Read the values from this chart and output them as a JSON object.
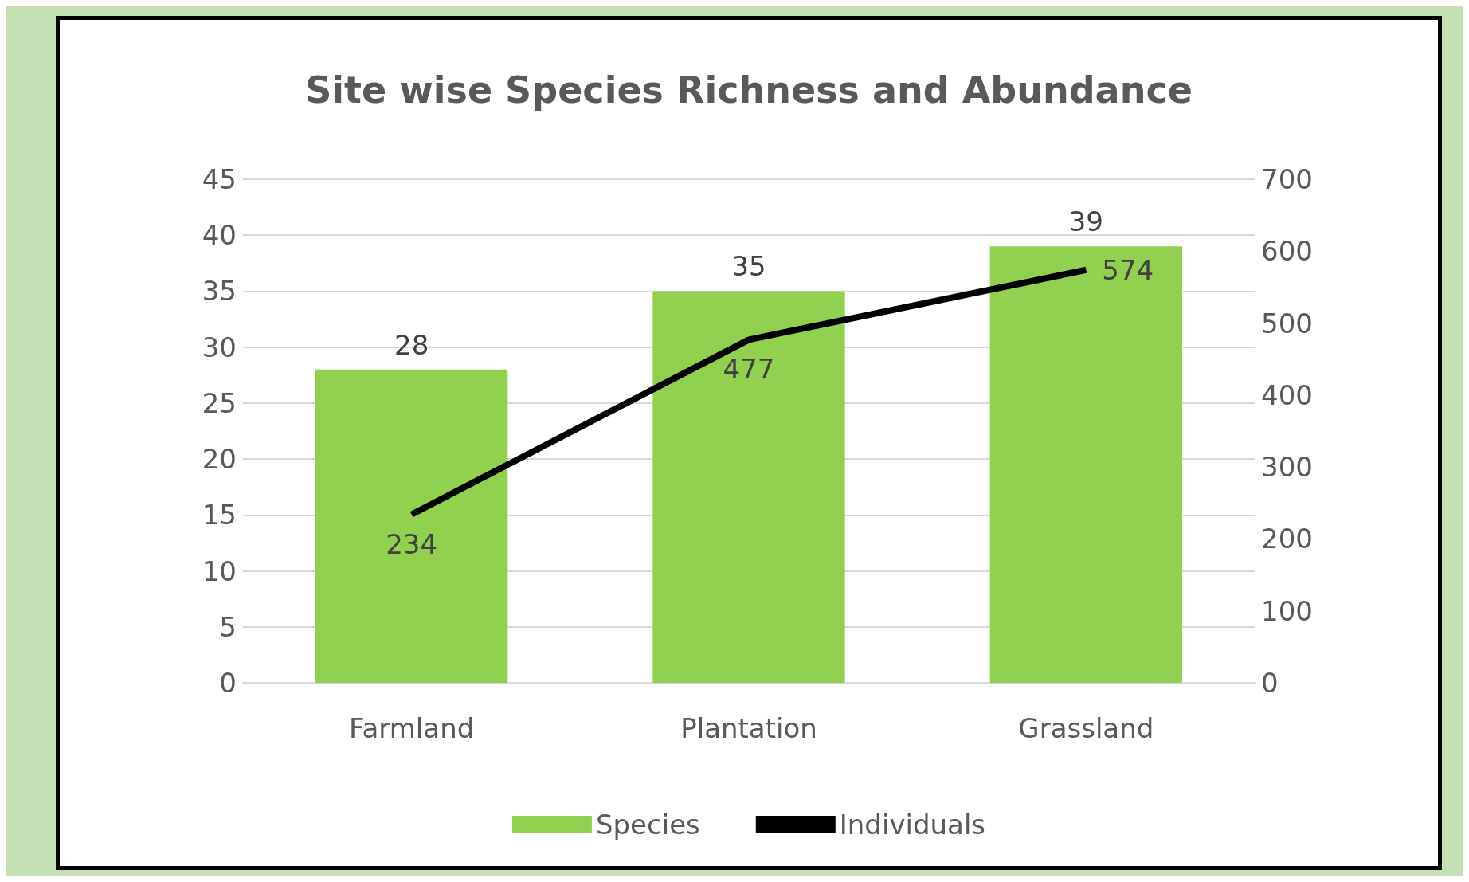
{
  "chart_data": {
    "type": "bar",
    "title": "Site wise Species Richness and Abundance",
    "categories": [
      "Farmland",
      "Plantation",
      "Grassland"
    ],
    "series": [
      {
        "name": "Species",
        "color": "#92d050",
        "values": [
          28,
          35,
          39
        ]
      },
      {
        "name": "Individuals",
        "type": "line",
        "axis": "y2",
        "color": "#000000",
        "values": [
          234,
          477,
          574
        ]
      }
    ],
    "ylim": [
      0,
      45
    ],
    "yticks": [
      0,
      5,
      10,
      15,
      20,
      25,
      30,
      35,
      40,
      45
    ],
    "y2lim": [
      0,
      700
    ],
    "y2ticks": [
      0,
      100,
      200,
      300,
      400,
      500,
      600,
      700
    ],
    "data_labels": true,
    "grid": "y",
    "legend": "bottom",
    "marker": "none"
  }
}
